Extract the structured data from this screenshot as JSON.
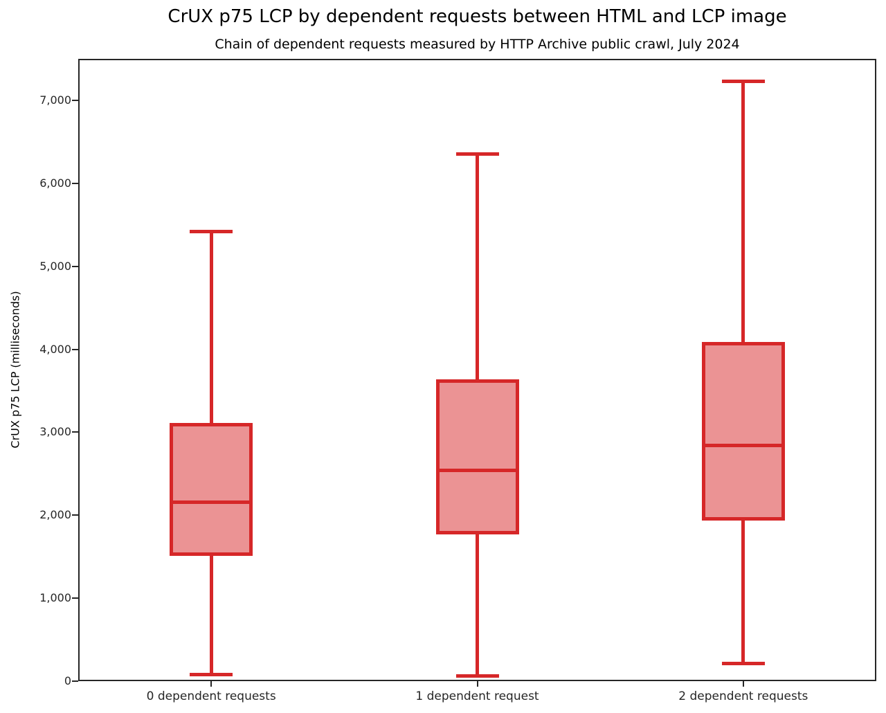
{
  "chart_data": {
    "type": "box",
    "title": "CrUX p75 LCP by dependent requests between HTML and LCP image",
    "subtitle": "Chain of dependent requests measured by HTTP Archive public crawl, July 2024",
    "ylabel": "CrUX p75 LCP (milliseconds)",
    "xlabel": "",
    "categories": [
      "0 dependent requests",
      "1 dependent request",
      "2 dependent requests"
    ],
    "series": [
      {
        "category": "0 dependent requests",
        "whisker_low": 80,
        "q1": 1530,
        "median": 2160,
        "q3": 3090,
        "whisker_high": 5420
      },
      {
        "category": "1 dependent request",
        "whisker_low": 60,
        "q1": 1790,
        "median": 2540,
        "q3": 3615,
        "whisker_high": 6350
      },
      {
        "category": "2 dependent requests",
        "whisker_low": 215,
        "q1": 1955,
        "median": 2840,
        "q3": 4070,
        "whisker_high": 7230
      }
    ],
    "ylim": [
      0,
      7500
    ],
    "yticks": [
      0,
      1000,
      2000,
      3000,
      4000,
      5000,
      6000,
      7000
    ],
    "ytick_labels": [
      "0",
      "1,000",
      "2,000",
      "3,000",
      "4,000",
      "5,000",
      "6,000",
      "7,000"
    ],
    "grid": false,
    "legend": null,
    "colors": {
      "box_line": "#d62728",
      "box_fill": "#eb9394",
      "axis": "#262626",
      "text": "#000000"
    }
  }
}
